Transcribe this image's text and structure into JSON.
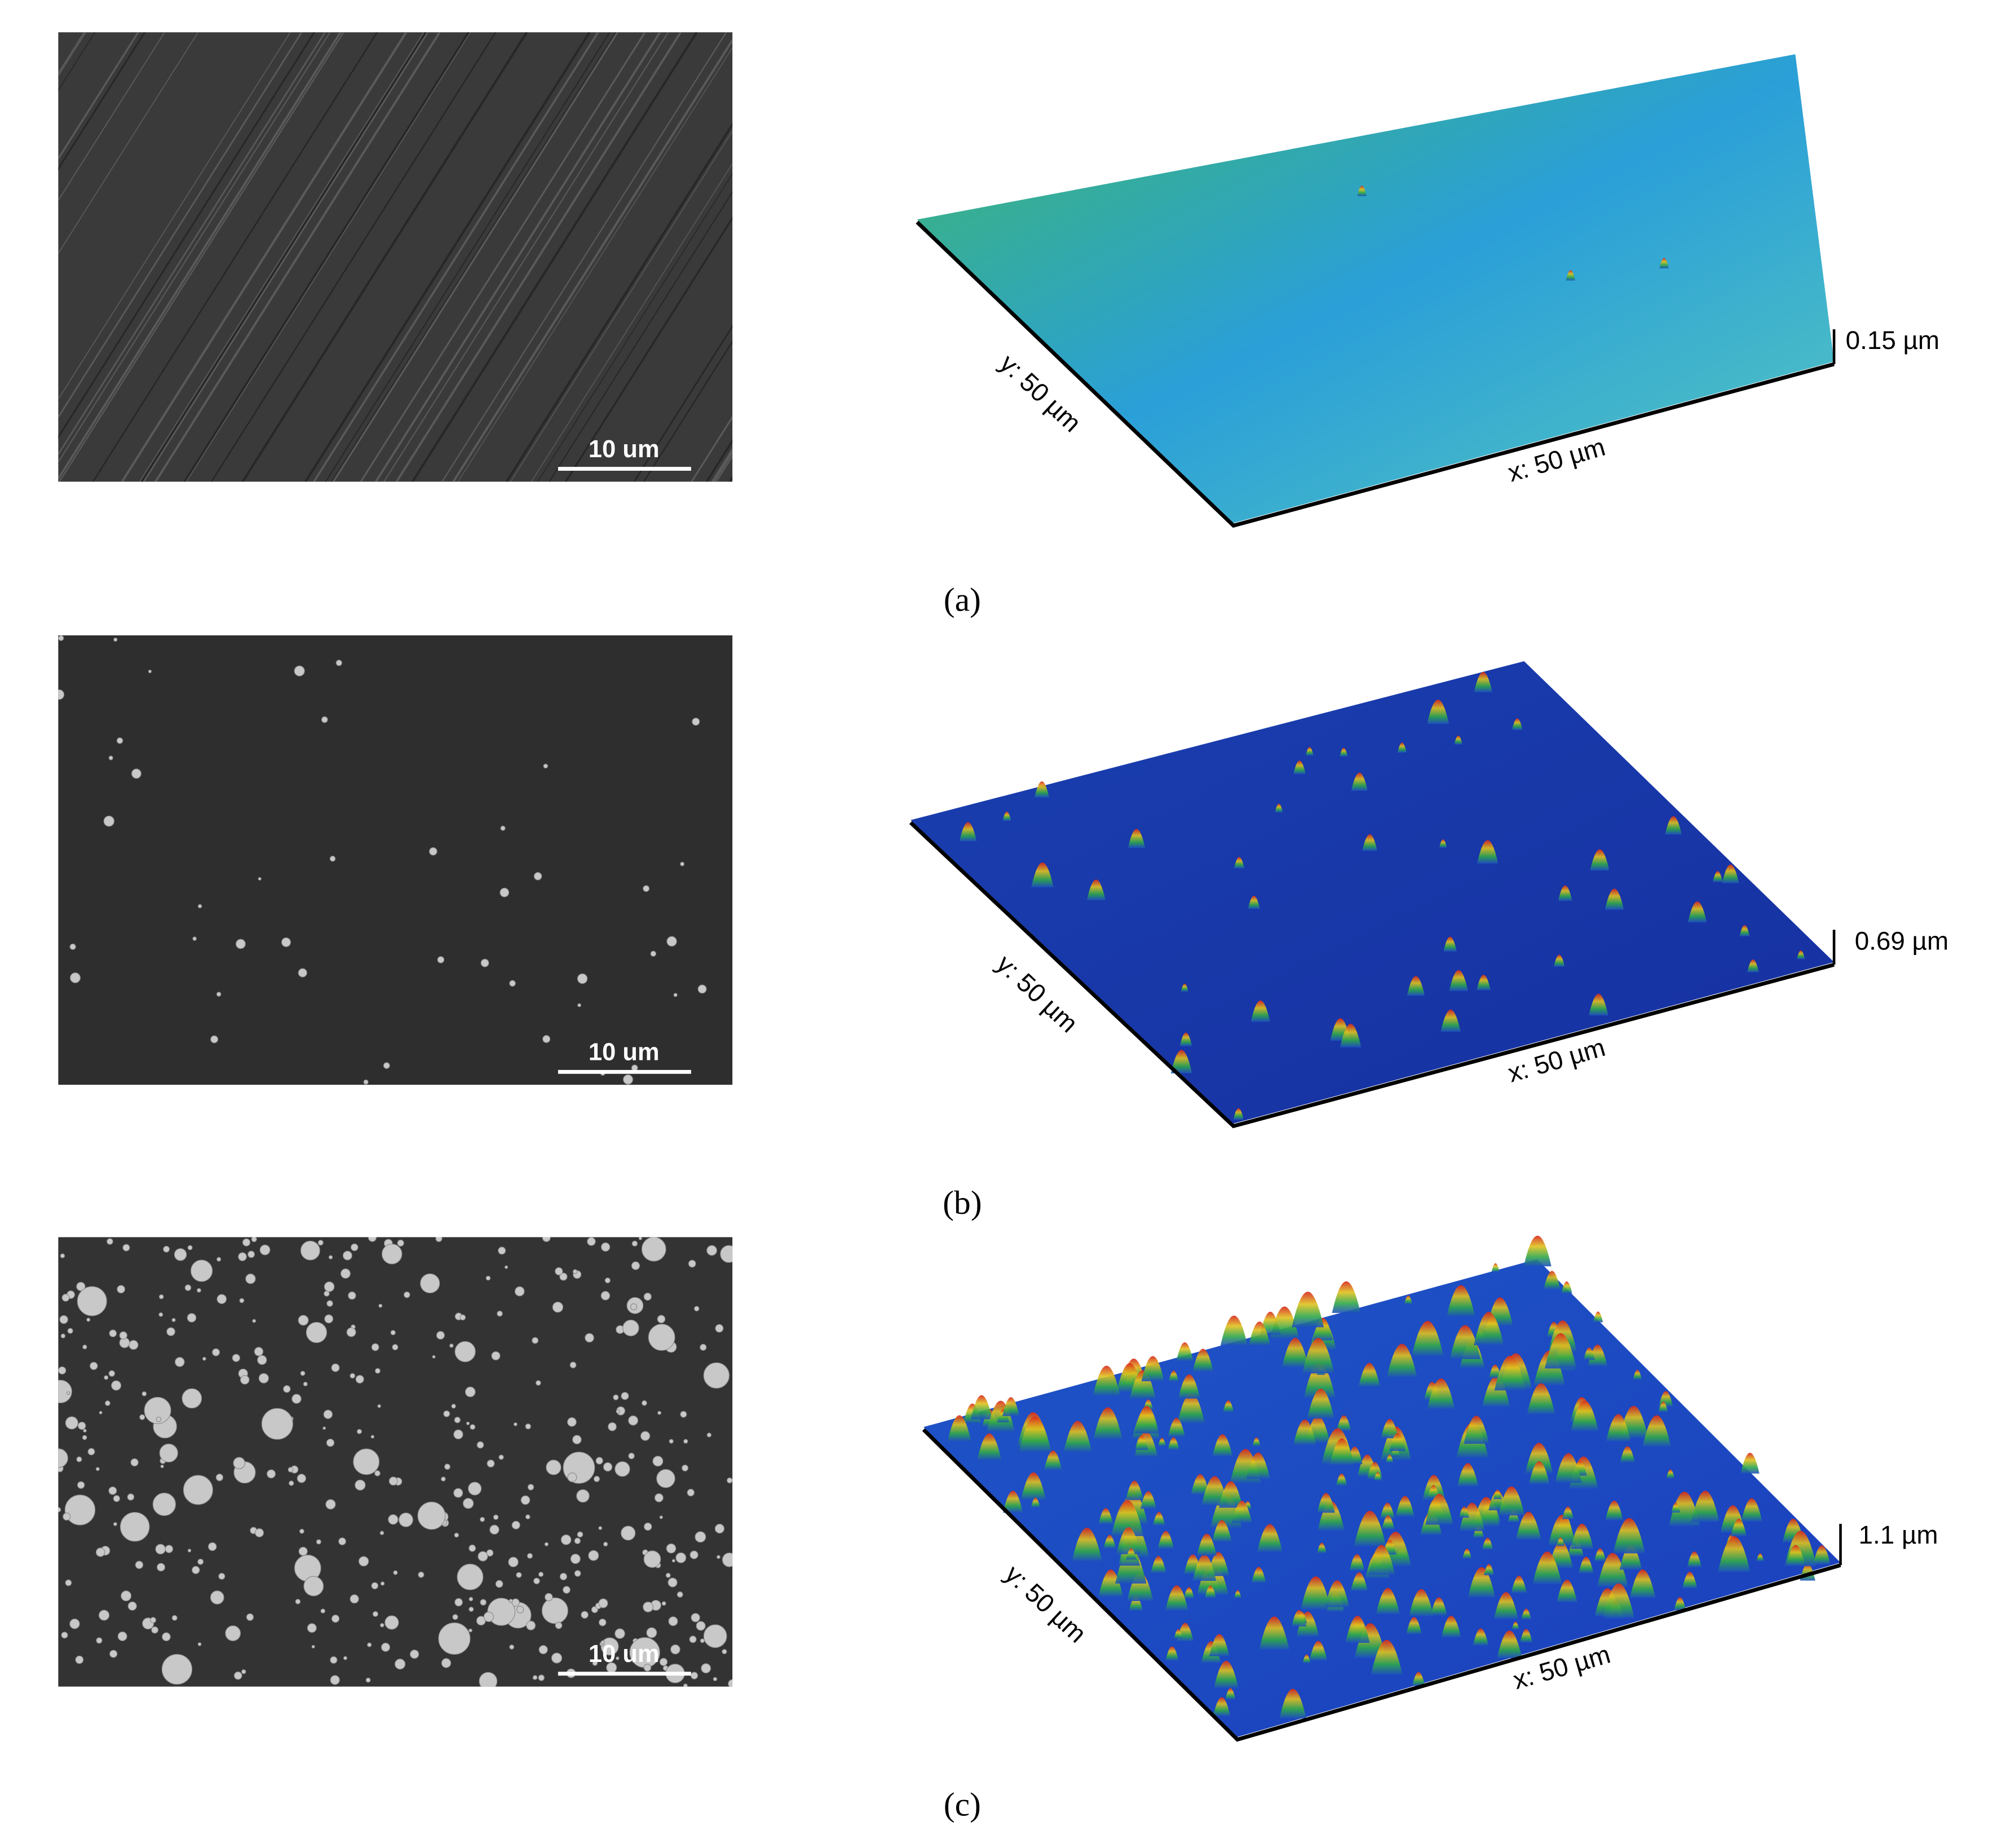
{
  "panels": [
    {
      "caption": "(a)",
      "sem_scale_bar": "10 um",
      "afm": {
        "y_axis": "y: 50 µm",
        "x_axis": "x: 50 µm",
        "z_axis": "0.15 µm"
      }
    },
    {
      "caption": "(b)",
      "sem_scale_bar": "10 um",
      "afm": {
        "y_axis": "y: 50 µm",
        "x_axis": "x: 50 µm",
        "z_axis": "0.69 µm"
      }
    },
    {
      "caption": "(c)",
      "sem_scale_bar": "10 um",
      "afm": {
        "y_axis": "y: 50 µm",
        "x_axis": "x: 50 µm",
        "z_axis": "1.1 µm"
      }
    }
  ]
}
